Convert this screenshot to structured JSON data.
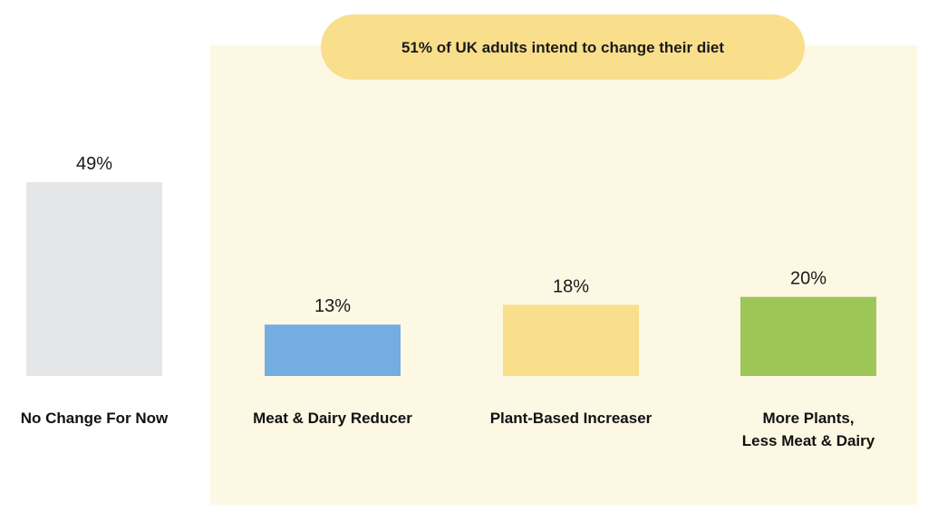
{
  "chart_data": {
    "type": "bar",
    "title": "",
    "xlabel": "",
    "ylabel": "",
    "ylim": [
      0,
      49
    ],
    "grid": false,
    "legend": "none",
    "categories": [
      [
        "No Change For Now"
      ],
      [
        "Meat & Dairy Reducer"
      ],
      [
        "Plant-Based Increaser"
      ],
      [
        "More Plants,",
        "Less Meat & Dairy"
      ]
    ],
    "values": [
      49,
      13,
      18,
      20
    ],
    "value_labels": [
      "49%",
      "13%",
      "18%",
      "20%"
    ],
    "colors": [
      "#e5e6e8",
      "#74ade0",
      "#f9de8c",
      "#9dc659"
    ],
    "annotation": {
      "text": "51% of UK adults intend to change their diet",
      "covers_categories": [
        1,
        2,
        3
      ],
      "panel_color": "#fdf8e3",
      "banner_color": "#f9de8c"
    }
  }
}
